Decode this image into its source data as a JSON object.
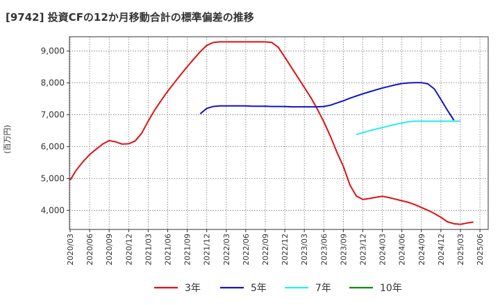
{
  "title": "[9742]  投資CFの12か月移動合計の標準偏差の推移",
  "ylabel": "(百万円)",
  "colors": {
    "s3": "#dd1111",
    "s5": "#1111cc",
    "s7": "#22eeee",
    "s10": "#118811"
  },
  "chart_data": {
    "type": "line",
    "title": "[9742]  投資CFの12か月移動合計の標準偏差の推移",
    "ylabel": "(百万円)",
    "xlabel": "",
    "ylim": [
      3400,
      9450
    ],
    "yticks": [
      4000,
      5000,
      6000,
      7000,
      8000,
      9000
    ],
    "ytick_labels": [
      "4,000",
      "5,000",
      "6,000",
      "7,000",
      "8,000",
      "9,000"
    ],
    "xtick_labels": [
      "2020/03",
      "2020/06",
      "2020/09",
      "2020/12",
      "2021/03",
      "2021/06",
      "2021/09",
      "2021/12",
      "2022/03",
      "2022/06",
      "2022/09",
      "2022/12",
      "2023/03",
      "2023/06",
      "2023/09",
      "2023/12",
      "2024/03",
      "2024/06",
      "2024/09",
      "2024/12",
      "2025/03",
      "2025/06"
    ],
    "grid": true,
    "legend_position": "bottom",
    "series": [
      {
        "name": "3年",
        "color": "#dd1111",
        "start_month": "2020/03",
        "values": [
          4950,
          5280,
          5530,
          5750,
          5920,
          6080,
          6190,
          6150,
          6080,
          6090,
          6180,
          6420,
          6800,
          7150,
          7450,
          7740,
          8000,
          8260,
          8510,
          8750,
          8980,
          9180,
          9270,
          9290,
          9290,
          9290,
          9290,
          9290,
          9290,
          9290,
          9290,
          9270,
          9120,
          8810,
          8490,
          8180,
          7860,
          7540,
          7180,
          6780,
          6330,
          5830,
          5380,
          4800,
          4450,
          4340,
          4370,
          4410,
          4440,
          4400,
          4350,
          4300,
          4250,
          4180,
          4090,
          4000,
          3900,
          3780,
          3640,
          3580,
          3560,
          3600,
          3630
        ]
      },
      {
        "name": "5年",
        "color": "#1111cc",
        "start_month": "2021/11",
        "values": [
          7030,
          7200,
          7260,
          7280,
          7280,
          7280,
          7280,
          7280,
          7270,
          7270,
          7270,
          7260,
          7260,
          7260,
          7250,
          7250,
          7250,
          7250,
          7250,
          7260,
          7300,
          7370,
          7440,
          7520,
          7590,
          7660,
          7720,
          7780,
          7840,
          7890,
          7940,
          7980,
          8000,
          8010,
          8010,
          7970,
          7810,
          7480,
          7140,
          6830
        ]
      },
      {
        "name": "7年",
        "color": "#22eeee",
        "start_month": "2023/11",
        "values": [
          6380,
          6440,
          6500,
          6550,
          6600,
          6650,
          6700,
          6740,
          6780,
          6800,
          6800,
          6800,
          6800,
          6800,
          6800,
          6800,
          6800
        ]
      },
      {
        "name": "10年",
        "color": "#118811",
        "start_month": "",
        "values": []
      }
    ]
  }
}
